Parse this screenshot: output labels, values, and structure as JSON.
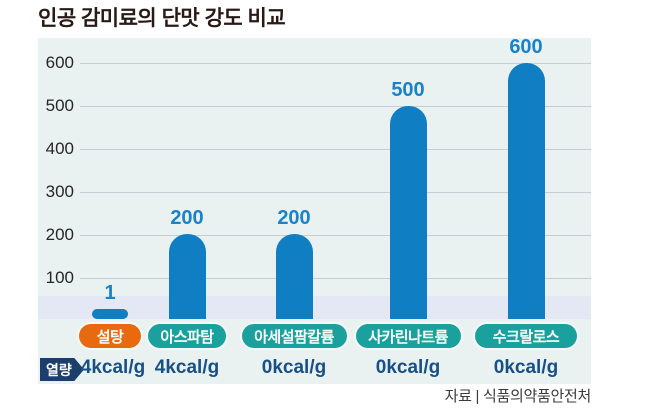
{
  "title": "인공 감미료의 단맛 강도 비교",
  "source": "자료 | 식품의약품안전처",
  "calorie_tag": "열량",
  "colors": {
    "bar": "#0f7ec3",
    "value_label": "#1a82c9",
    "pill_orange": "#e8690e",
    "pill_teal": "#1aa19d",
    "tag_navy": "#1c3e6d",
    "kcal_text": "#174f87",
    "panel_bg": "#e9f2f1",
    "baseline_band": "#e4e8f4",
    "gridline": "#c8ccd3"
  },
  "chart_data": {
    "type": "bar",
    "title": "인공 감미료의 단맛 강도 비교",
    "categories": [
      "설탕",
      "아스파탐",
      "아세설팜칼륨",
      "사카린나트륨",
      "수크랄로스"
    ],
    "values": [
      1,
      200,
      200,
      500,
      600
    ],
    "bar_value_labels": [
      "1",
      "200",
      "200",
      "500",
      "600"
    ],
    "calories_row_label": "열량",
    "calories": [
      "4kcal/g",
      "4kcal/g",
      "0kcal/g",
      "0kcal/g",
      "0kcal/g"
    ],
    "category_pill_colors": [
      "#e8690e",
      "#1aa19d",
      "#1aa19d",
      "#1aa19d",
      "#1aa19d"
    ],
    "bar_color": "#0f7ec3",
    "y_ticks": [
      600,
      500,
      400,
      300,
      200,
      100
    ],
    "ylim": [
      0,
      600
    ],
    "grid": true,
    "legend_position": "none",
    "xlabel": "",
    "ylabel": "",
    "source": "자료 | 식품의약품안전처"
  }
}
